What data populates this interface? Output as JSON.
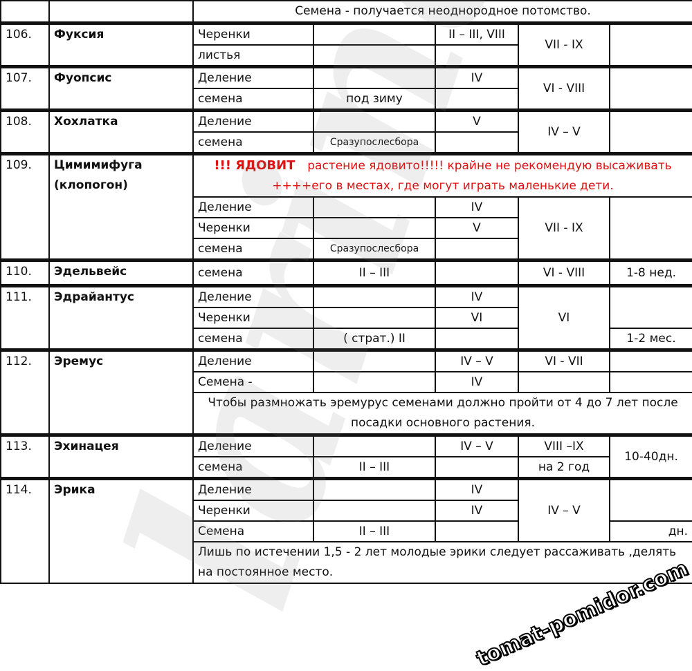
{
  "header_note": "Семена -  получается неоднородное потомство.",
  "rows": {
    "r106": {
      "num": "106.",
      "name": "Фуксия",
      "a1": "Черенки",
      "a3": "II – III, VIII",
      "b1": "листья",
      "m": "VII - IX"
    },
    "r107": {
      "num": "107.",
      "name": "Фуопсис",
      "a1": "Деление",
      "a3": "IV",
      "b1": "семена",
      "b2": "под зиму",
      "m": "VI - VIII"
    },
    "r108": {
      "num": "108.",
      "name": "Хохлатка",
      "a1": "Деление",
      "a3": "V",
      "b1": "семена",
      "b2": "Сразупослесбора",
      "m": "IV – V"
    },
    "r109": {
      "num": "109.",
      "name": "Цимимифуга (клопогон)",
      "warn_bold": "!!! ЯДОВИТ",
      "warn_text": "растение ядовито!!!!! крайне не рекомендую высаживать ++++его в местах, где могут играть маленькие дети.",
      "a1": "Деление",
      "a3": "IV",
      "b1": "Черенки",
      "b3": "V",
      "c1": "семена",
      "c2": "Сразупослесбора",
      "m": "VII -  IX"
    },
    "r110": {
      "num": "110.",
      "name": "Эдельвейс",
      "a1": "семена",
      "a2": "II – III",
      "m": "VI - VIII",
      "e": "1-8 нед."
    },
    "r111": {
      "num": "111.",
      "name": "Эдрайантус",
      "a1": "Деление",
      "a3": "IV",
      "b1": "Черенки",
      "b3": "VI",
      "c1": "семена",
      "c2": "( страт.) II",
      "m": "VI",
      "e": "1-2 мес."
    },
    "r112": {
      "num": "112.",
      "name": "Эремус",
      "a1": "Деление",
      "a3": "IV – V",
      "am": "VI -  VII",
      "b1": "Семена -",
      "b3": "IV",
      "note": "Чтобы размножать эремурус семенами должно пройти от 4 до 7 лет после посадки основного растения."
    },
    "r113": {
      "num": "113.",
      "name": "Эхинацея",
      "a1": "Деление",
      "a3": "IV – V",
      "am": "VIII –IX",
      "b1": "семена",
      "b2": "II – III",
      "bm": "на 2 год",
      "e": "10-40дн."
    },
    "r114": {
      "num": "114.",
      "name": "Эрика",
      "a1": "Деление",
      "a3": "IV",
      "b1": "Черенки",
      "b3": "IV",
      "c1": "Семена",
      "c2": "II – III",
      "m": "IV – V",
      "e": "дн.",
      "note": "Лишь по истечении 1,5 - 2 лет молодые эрики следует  рассаживать ,делять на постоянное место."
    }
  },
  "watermarks": {
    "main": "larina",
    "site": "tomat-pomidor.com"
  },
  "colors": {
    "warning": "#e01010",
    "border": "#111111"
  }
}
